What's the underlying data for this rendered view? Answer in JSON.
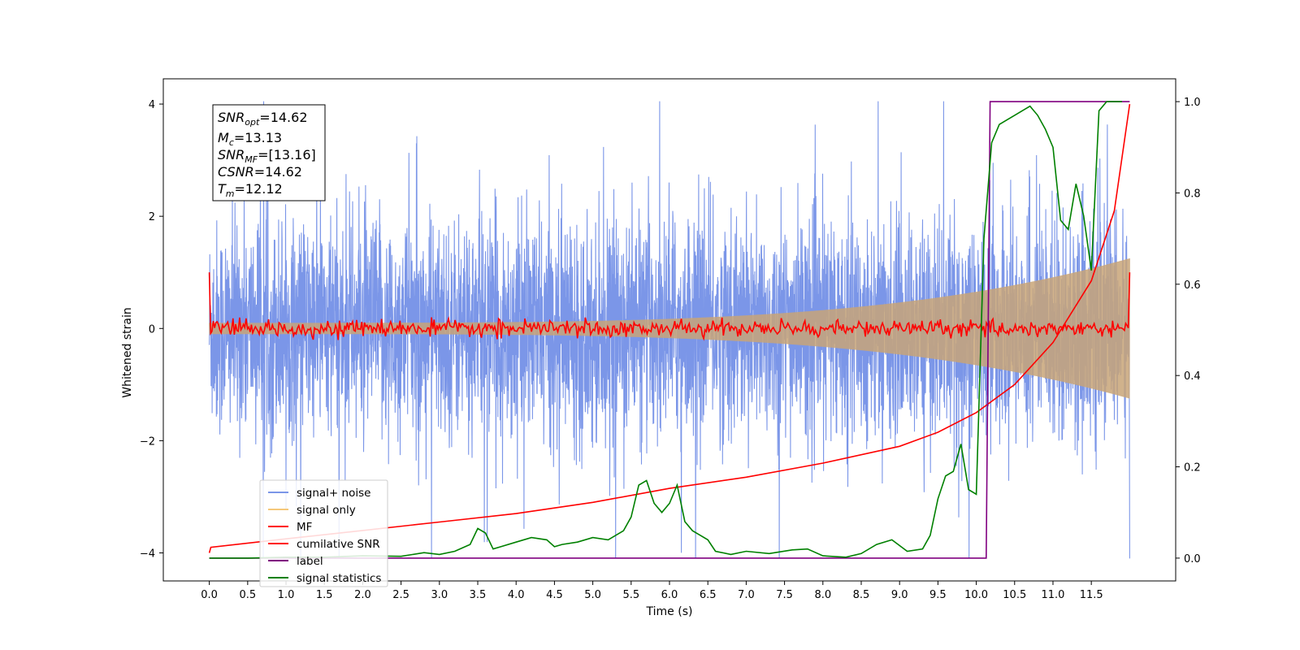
{
  "chart_data": {
    "type": "line",
    "xlabel": "Time (s)",
    "ylabel_left": "Whitened strain",
    "xlim": [
      -0.6,
      12.6
    ],
    "ylim_left": [
      -4.5,
      4.45
    ],
    "ylim_right": [
      -0.05,
      1.05
    ],
    "x_ticks": [
      "0.0",
      "0.5",
      "1.0",
      "1.5",
      "2.0",
      "2.5",
      "3.0",
      "3.5",
      "4.0",
      "4.5",
      "5.0",
      "5.5",
      "6.0",
      "6.5",
      "7.0",
      "7.5",
      "8.0",
      "8.5",
      "9.0",
      "9.5",
      "10.0",
      "10.5",
      "11.0",
      "11.5"
    ],
    "y_ticks_left": [
      "4",
      "2",
      "0",
      "−2",
      "−4"
    ],
    "y_ticks_right": [
      "1.0",
      "0.8",
      "0.6",
      "0.4",
      "0.2",
      "0.0"
    ],
    "annotation": {
      "snr_opt": {
        "sym": "SNR",
        "sub": "opt",
        "rest": "=14.62"
      },
      "mc": {
        "sym": "M",
        "sub": "c",
        "rest": "=13.13"
      },
      "snr_mf": {
        "sym": "SNR",
        "sub": "MF",
        "rest": "=[13.16]"
      },
      "csnr": {
        "sym": "CSNR",
        "rest": "=14.62"
      },
      "tm": {
        "sym": "T",
        "sub": "m",
        "rest": "=12.12"
      }
    },
    "legend": {
      "placement": "lower-left",
      "entries": [
        {
          "label": "signal+ noise",
          "color": "#7b96e8"
        },
        {
          "label": "signal only",
          "color": "#f5c87a"
        },
        {
          "label": "MF",
          "color": "#ff0000"
        },
        {
          "label": "cumilative SNR",
          "color": "#ff0000"
        },
        {
          "label": "label",
          "color": "#800080"
        },
        {
          "label": "signal statistics",
          "color": "#008000"
        }
      ]
    },
    "series": [
      {
        "name": "signal+ noise",
        "axis": "left",
        "color": "#7b96e8",
        "t_start": 0.0,
        "t_end": 12.0,
        "noise_std": 1.0,
        "description_envelope": "approx ±3 to ±4 spikes"
      },
      {
        "name": "signal only",
        "axis": "left",
        "color": "#c8a478",
        "t_start": 0.0,
        "t_end": 12.0,
        "amp_start": 0.0,
        "amp_end": 1.15
      },
      {
        "name": "MF",
        "axis": "left",
        "color": "#ff0000",
        "t_start": 0.0,
        "t_end": 12.0,
        "start_value": 1.0,
        "end_value": 1.0,
        "noise_amp": 0.07
      },
      {
        "name": "cumilative SNR",
        "axis": "left",
        "color": "#ff0000",
        "x": [
          0.0,
          0.02,
          1.0,
          2.0,
          3.0,
          4.0,
          5.0,
          6.0,
          7.0,
          8.0,
          9.0,
          9.5,
          10.0,
          10.5,
          11.0,
          11.5,
          11.8,
          12.0
        ],
        "y": [
          -4.0,
          -3.9,
          -3.75,
          -3.6,
          -3.45,
          -3.3,
          -3.1,
          -2.85,
          -2.65,
          -2.4,
          -2.1,
          -1.85,
          -1.5,
          -1.0,
          -0.25,
          0.85,
          2.1,
          4.0
        ]
      },
      {
        "name": "label",
        "axis": "right",
        "color": "#800080",
        "x": [
          0.0,
          10.13,
          10.18,
          12.0
        ],
        "y": [
          0.0,
          0.0,
          1.0,
          1.0
        ]
      },
      {
        "name": "signal statistics",
        "axis": "right",
        "color": "#008000",
        "x": [
          0.0,
          0.5,
          1.0,
          1.5,
          2.0,
          2.5,
          2.8,
          3.0,
          3.2,
          3.4,
          3.5,
          3.6,
          3.7,
          3.8,
          4.0,
          4.2,
          4.4,
          4.5,
          4.6,
          4.8,
          5.0,
          5.2,
          5.4,
          5.5,
          5.6,
          5.7,
          5.8,
          5.9,
          6.0,
          6.1,
          6.2,
          6.3,
          6.4,
          6.5,
          6.6,
          6.8,
          7.0,
          7.3,
          7.6,
          7.8,
          8.0,
          8.3,
          8.5,
          8.7,
          8.9,
          9.1,
          9.3,
          9.4,
          9.5,
          9.6,
          9.7,
          9.8,
          9.9,
          10.0,
          10.1,
          10.2,
          10.3,
          10.4,
          10.5,
          10.6,
          10.7,
          10.8,
          10.9,
          11.0,
          11.1,
          11.2,
          11.3,
          11.4,
          11.5,
          11.6,
          11.7,
          11.8,
          11.9
        ],
        "y": [
          0.0,
          0.0,
          0.002,
          0.002,
          0.005,
          0.004,
          0.012,
          0.008,
          0.015,
          0.03,
          0.065,
          0.055,
          0.02,
          0.025,
          0.035,
          0.045,
          0.04,
          0.025,
          0.03,
          0.035,
          0.045,
          0.04,
          0.06,
          0.09,
          0.16,
          0.17,
          0.12,
          0.1,
          0.12,
          0.16,
          0.08,
          0.06,
          0.05,
          0.04,
          0.015,
          0.008,
          0.015,
          0.01,
          0.018,
          0.02,
          0.005,
          0.002,
          0.01,
          0.03,
          0.04,
          0.015,
          0.02,
          0.05,
          0.13,
          0.18,
          0.19,
          0.25,
          0.15,
          0.14,
          0.7,
          0.91,
          0.95,
          0.96,
          0.97,
          0.98,
          0.99,
          0.97,
          0.94,
          0.9,
          0.74,
          0.72,
          0.82,
          0.75,
          0.63,
          0.98,
          1.0,
          1.0,
          1.0
        ]
      }
    ]
  }
}
